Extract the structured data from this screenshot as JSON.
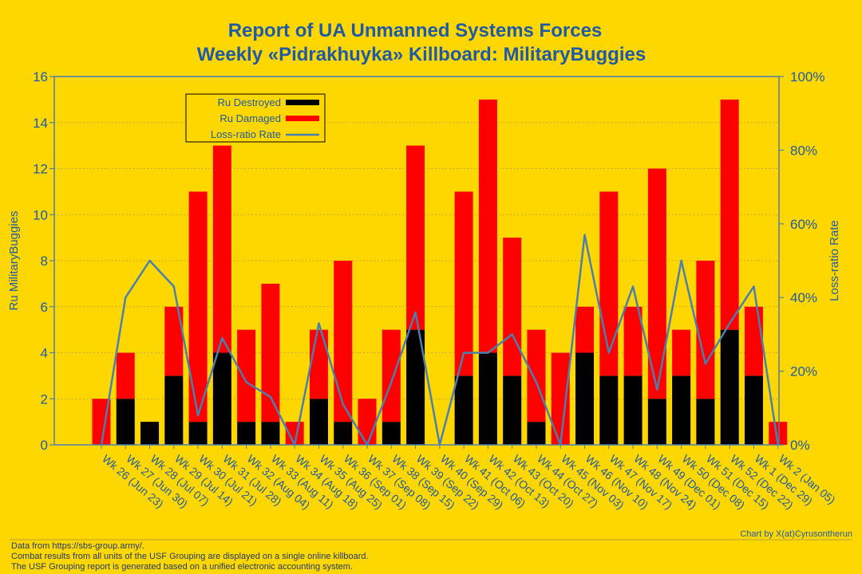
{
  "chart_data": {
    "type": "bar",
    "title": "Report of UA Unmanned Systems Forces",
    "subtitle": "Weekly «Pidrakhuyka» Killboard: MilitaryBuggies",
    "ylabel": "Ru MilitaryBuggies",
    "y2label": "Loss-ratio Rate",
    "ylim": [
      0,
      16
    ],
    "y2lim": [
      0,
      100
    ],
    "yticks": [
      "0",
      "2",
      "4",
      "6",
      "8",
      "10",
      "12",
      "14",
      "16"
    ],
    "y2ticks": [
      "0%",
      "20%",
      "40%",
      "60%",
      "80%",
      "100%"
    ],
    "legend_position": "top-left",
    "categories": [
      "Wk 26 (Jun 23)",
      "Wk 27 (Jun 30)",
      "Wk 28 (Jul 07)",
      "Wk 29 (Jul 14)",
      "Wk 30 (Jul 21)",
      "Wk 31 (Jul 28)",
      "Wk 32 (Aug 04)",
      "Wk 33 (Aug 11)",
      "Wk 34 (Aug 18)",
      "Wk 35 (Aug 25)",
      "Wk 36 (Sep 01)",
      "Wk 37 (Sep 08)",
      "Wk 38 (Sep 15)",
      "Wk 39 (Sep 22)",
      "Wk 40 (Sep 29)",
      "Wk 41 (Oct 06)",
      "Wk 42 (Oct 13)",
      "Wk 43 (Oct 20)",
      "Wk 44 (Oct 27)",
      "Wk 45 (Nov 03)",
      "Wk 46 (Nov 10)",
      "Wk 47 (Nov 17)",
      "Wk 48 (Nov 24)",
      "Wk 49 (Dec 01)",
      "Wk 50 (Dec 08)",
      "Wk 51 (Dec 15)",
      "Wk 52 (Dec 22)",
      "Wk 1 (Dec 29)",
      "Wk 2 (Jan 05)"
    ],
    "series": [
      {
        "name": "Ru Destroyed",
        "color": "#000000",
        "values": [
          0,
          2,
          1,
          3,
          1,
          4,
          1,
          1,
          0,
          2,
          1,
          0,
          1,
          5,
          0,
          3,
          4,
          3,
          1,
          0,
          4,
          3,
          3,
          2,
          3,
          2,
          5,
          3,
          0
        ]
      },
      {
        "name": "Ru Damaged",
        "color": "#FF0000",
        "values": [
          2,
          2,
          0,
          3,
          10,
          9,
          4,
          6,
          1,
          3,
          7,
          2,
          4,
          8,
          0,
          8,
          11,
          6,
          4,
          4,
          2,
          8,
          3,
          10,
          2,
          6,
          10,
          3,
          1
        ]
      },
      {
        "name": "Loss-ratio Rate",
        "color": "#4a7fb0",
        "type": "line",
        "values": [
          0,
          40,
          50,
          43,
          8,
          29,
          17,
          13,
          0,
          33,
          11,
          0,
          17,
          36,
          0,
          25,
          25,
          30,
          17,
          0,
          57,
          25,
          43,
          15,
          50,
          22,
          33,
          43,
          0
        ]
      }
    ]
  },
  "credit": "Chart by X(at)Cyrusontherun",
  "footnotes": [
    "Data from https://sbs-group.army/.",
    "Combat results from all units of the USF Grouping are displayed on a single online killboard.",
    "The USF Grouping report is generated based on a unified electronic accounting system."
  ]
}
